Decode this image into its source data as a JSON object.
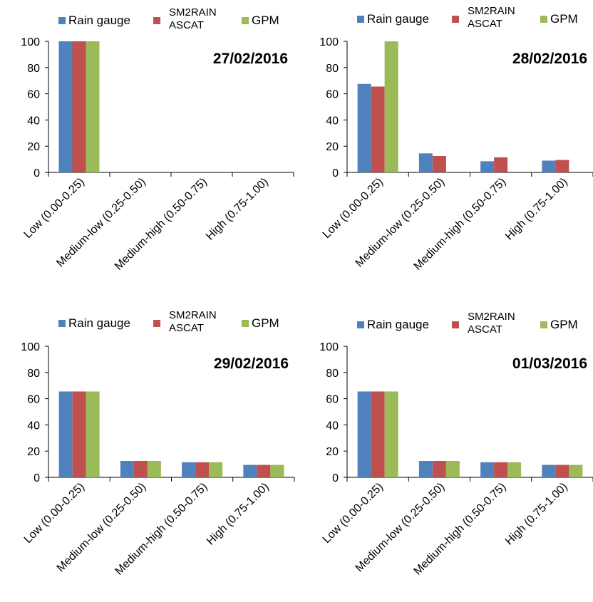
{
  "chart_data": [
    {
      "type": "bar",
      "title": "27/02/2016",
      "categories": [
        "Low (0.00-0.25)",
        "Medium-low (0.25-0.50)",
        "Medium-high (0.50-0.75)",
        "High (0.75-1.00)"
      ],
      "series": [
        {
          "name": "Rain gauge",
          "color": "#4f81bd",
          "values": [
            100,
            0,
            0,
            0
          ]
        },
        {
          "name": "SM2RAIN ASCAT",
          "color": "#c0504d",
          "values": [
            100,
            0,
            0,
            0
          ]
        },
        {
          "name": "GPM",
          "color": "#9bbb59",
          "values": [
            100,
            0,
            0,
            0
          ]
        }
      ],
      "ylim": [
        0,
        100
      ],
      "yticks": [
        0,
        20,
        40,
        60,
        80,
        100
      ],
      "grid": false,
      "legend": "top"
    },
    {
      "type": "bar",
      "title": "28/02/2016",
      "categories": [
        "Low (0.00-0.25)",
        "Medium-low (0.25-0.50)",
        "Medium-high (0.50-0.75)",
        "High (0.75-1.00)"
      ],
      "series": [
        {
          "name": "Rain gauge",
          "color": "#4f81bd",
          "values": [
            67.5,
            14.5,
            8.5,
            9
          ]
        },
        {
          "name": "SM2RAIN ASCAT",
          "color": "#c0504d",
          "values": [
            65.5,
            12.5,
            11.5,
            9.5
          ]
        },
        {
          "name": "GPM",
          "color": "#9bbb59",
          "values": [
            100,
            0,
            0,
            0
          ]
        }
      ],
      "ylim": [
        0,
        100
      ],
      "yticks": [
        0,
        20,
        40,
        60,
        80,
        100
      ],
      "grid": false,
      "legend": "top"
    },
    {
      "type": "bar",
      "title": "29/02/2016",
      "categories": [
        "Low (0.00-0.25)",
        "Medium-low (0.25-0.50)",
        "Medium-high (0.50-0.75)",
        "High (0.75-1.00)"
      ],
      "series": [
        {
          "name": "Rain gauge",
          "color": "#4f81bd",
          "values": [
            65.5,
            12.5,
            11.5,
            9.5
          ]
        },
        {
          "name": "SM2RAIN ASCAT",
          "color": "#c0504d",
          "values": [
            65.5,
            12.5,
            11.5,
            9.5
          ]
        },
        {
          "name": "GPM",
          "color": "#9bbb59",
          "values": [
            65.5,
            12.5,
            11.5,
            9.5
          ]
        }
      ],
      "ylim": [
        0,
        100
      ],
      "yticks": [
        0,
        20,
        40,
        60,
        80,
        100
      ],
      "grid": false,
      "legend": "top"
    },
    {
      "type": "bar",
      "title": "01/03/2016",
      "categories": [
        "Low (0.00-0.25)",
        "Medium-low (0.25-0.50)",
        "Medium-high (0.50-0.75)",
        "High (0.75-1.00)"
      ],
      "series": [
        {
          "name": "Rain gauge",
          "color": "#4f81bd",
          "values": [
            65.5,
            12.5,
            11.5,
            9.5
          ]
        },
        {
          "name": "SM2RAIN ASCAT",
          "color": "#c0504d",
          "values": [
            65.5,
            12.5,
            11.5,
            9.5
          ]
        },
        {
          "name": "GPM",
          "color": "#9bbb59",
          "values": [
            65.5,
            12.5,
            11.5,
            9.5
          ]
        }
      ],
      "ylim": [
        0,
        100
      ],
      "yticks": [
        0,
        20,
        40,
        60,
        80,
        100
      ],
      "grid": false,
      "legend": "top"
    }
  ]
}
